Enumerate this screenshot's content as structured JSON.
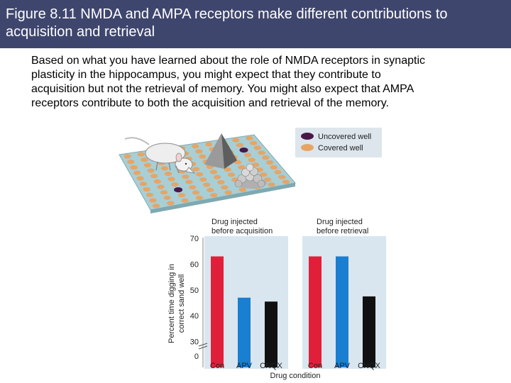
{
  "slide": {
    "title_lines": [
      "Figure 8.11  NMDA and AMPA receptors make different contributions to",
      "acquisition and retrieval"
    ],
    "body_lines": [
      "Based on what you have learned about the role of NMDA receptors in synaptic",
      "plasticity in the hippocampus, you might expect that they contribute to",
      "acquisition but not the retrieval of memory. You might also expect that AMPA",
      "receptors contribute to both the acquisition and retrieval of the memory."
    ]
  },
  "legend": {
    "items": [
      {
        "label": "Uncovered well",
        "color": "#4a1848"
      },
      {
        "label": "Covered well",
        "color": "#e6a566"
      }
    ]
  },
  "colors": {
    "arena": "#a8cfd6",
    "covered_well": "#e6a566",
    "uncovered_well": "#4a1848",
    "panel_bg": "#d9e6ef",
    "bar_con": "#e0203a",
    "bar_apv": "#1a7fd0",
    "bar_cnqx": "#111111"
  },
  "chart_data": [
    {
      "type": "bar",
      "title": "Drug injected before acquisition",
      "title_lines": [
        "Drug injected",
        "before acquisition"
      ],
      "categories": [
        "Con",
        "APV",
        "CNQX"
      ],
      "values": [
        63,
        47,
        45.5
      ],
      "ylabel": "Percent time digging in correct sand well",
      "ylabel_lines": [
        "Percent time digging in",
        "correct sand well"
      ],
      "xlabel": "Drug condition",
      "ylim": [
        0,
        70
      ],
      "yticks": [
        0,
        30,
        40,
        50,
        60,
        70
      ],
      "axis_break": true
    },
    {
      "type": "bar",
      "title": "Drug injected before retrieval",
      "title_lines": [
        "Drug injected",
        "before retrieval"
      ],
      "categories": [
        "Con",
        "APV",
        "CNQX"
      ],
      "values": [
        63,
        63,
        47.5
      ],
      "xlabel": "Drug condition",
      "ylim": [
        0,
        70
      ]
    }
  ]
}
